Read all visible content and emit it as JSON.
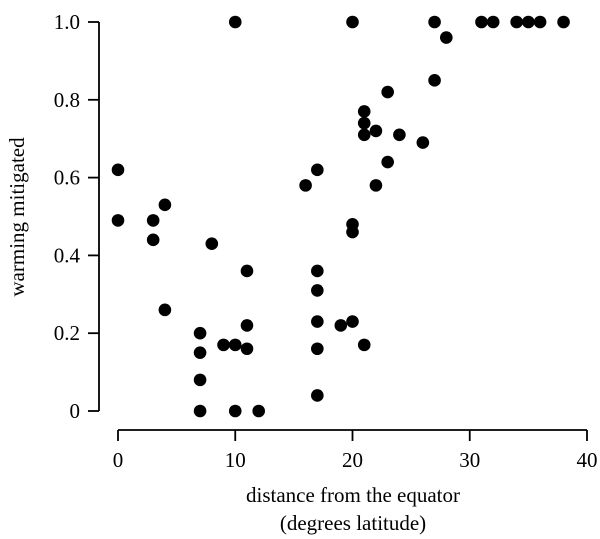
{
  "chart_data": {
    "type": "scatter",
    "title": "",
    "xlabel": [
      "distance from the equator",
      "(degrees latitude)"
    ],
    "ylabel": "warming mitigated",
    "xlim": [
      0,
      40
    ],
    "ylim": [
      0,
      1.0
    ],
    "x_ticks": [
      0,
      10,
      20,
      30,
      40
    ],
    "x_tick_labels": [
      "0",
      "10",
      "20",
      "30",
      "40"
    ],
    "y_ticks": [
      0,
      0.2,
      0.4,
      0.6,
      0.8,
      1.0
    ],
    "y_tick_labels": [
      "0",
      "0.2",
      "0.4",
      "0.6",
      "0.8",
      "1.0"
    ],
    "grid": false,
    "legend": "none",
    "point_color": "#000000",
    "points": [
      {
        "x": 0,
        "y": 0.62
      },
      {
        "x": 0,
        "y": 0.49
      },
      {
        "x": 3,
        "y": 0.49
      },
      {
        "x": 3,
        "y": 0.44
      },
      {
        "x": 4,
        "y": 0.53
      },
      {
        "x": 4,
        "y": 0.26
      },
      {
        "x": 7,
        "y": 0.2
      },
      {
        "x": 7,
        "y": 0.15
      },
      {
        "x": 7,
        "y": 0.08
      },
      {
        "x": 7,
        "y": 0.0
      },
      {
        "x": 8,
        "y": 0.43
      },
      {
        "x": 9,
        "y": 0.17
      },
      {
        "x": 10,
        "y": 1.0
      },
      {
        "x": 10,
        "y": 0.17
      },
      {
        "x": 10,
        "y": 0.0
      },
      {
        "x": 11,
        "y": 0.36
      },
      {
        "x": 11,
        "y": 0.22
      },
      {
        "x": 11,
        "y": 0.16
      },
      {
        "x": 12,
        "y": 0.0
      },
      {
        "x": 16,
        "y": 0.58
      },
      {
        "x": 17,
        "y": 0.62
      },
      {
        "x": 17,
        "y": 0.36
      },
      {
        "x": 17,
        "y": 0.31
      },
      {
        "x": 17,
        "y": 0.23
      },
      {
        "x": 17,
        "y": 0.16
      },
      {
        "x": 17,
        "y": 0.04
      },
      {
        "x": 19,
        "y": 0.22
      },
      {
        "x": 20,
        "y": 1.0
      },
      {
        "x": 20,
        "y": 0.48
      },
      {
        "x": 20,
        "y": 0.46
      },
      {
        "x": 20,
        "y": 0.23
      },
      {
        "x": 21,
        "y": 0.77
      },
      {
        "x": 21,
        "y": 0.74
      },
      {
        "x": 21,
        "y": 0.71
      },
      {
        "x": 21,
        "y": 0.17
      },
      {
        "x": 22,
        "y": 0.72
      },
      {
        "x": 22,
        "y": 0.58
      },
      {
        "x": 23,
        "y": 0.82
      },
      {
        "x": 23,
        "y": 0.64
      },
      {
        "x": 24,
        "y": 0.71
      },
      {
        "x": 26,
        "y": 0.69
      },
      {
        "x": 27,
        "y": 1.0
      },
      {
        "x": 27,
        "y": 0.85
      },
      {
        "x": 28,
        "y": 0.96
      },
      {
        "x": 31,
        "y": 1.0
      },
      {
        "x": 32,
        "y": 1.0
      },
      {
        "x": 34,
        "y": 1.0
      },
      {
        "x": 35,
        "y": 1.0
      },
      {
        "x": 36,
        "y": 1.0
      },
      {
        "x": 38,
        "y": 1.0
      }
    ]
  }
}
